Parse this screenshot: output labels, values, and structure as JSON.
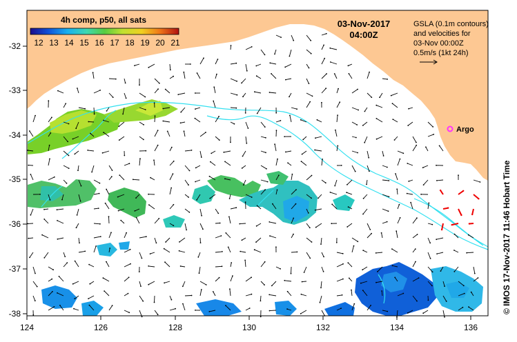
{
  "legend": {
    "title": "4h comp, p50, all sats",
    "ticks": [
      "12",
      "13",
      "14",
      "15",
      "16",
      "17",
      "18",
      "19",
      "20",
      "21"
    ]
  },
  "header": {
    "date": "03-Nov-2017",
    "time": "04:00Z"
  },
  "info": {
    "line1": "GSLA (0.1m contours)",
    "line2": "and velocities for",
    "line3": "03-Nov 00:00Z",
    "line4": "0.5m/s (1kt 24h)"
  },
  "argo": {
    "label": "Argo",
    "color": "#ff33ff"
  },
  "credit": "© IMOS 17-Nov-2017 11:46 Hobart Time",
  "axes": {
    "lon_ticks": [
      "124",
      "126",
      "128",
      "130",
      "132",
      "134",
      "136"
    ],
    "lat_ticks": [
      "-32",
      "-33",
      "-34",
      "-35",
      "-36",
      "-37",
      "-38"
    ],
    "lon_range": [
      124,
      136.5
    ],
    "lat_range": [
      -31.5,
      -38.1
    ]
  },
  "colors": {
    "land": "#fdc893",
    "ocean": "#ffffff",
    "contour": "#33e0f0",
    "red_arrows": "#ee0000",
    "arrows": "#000000"
  }
}
